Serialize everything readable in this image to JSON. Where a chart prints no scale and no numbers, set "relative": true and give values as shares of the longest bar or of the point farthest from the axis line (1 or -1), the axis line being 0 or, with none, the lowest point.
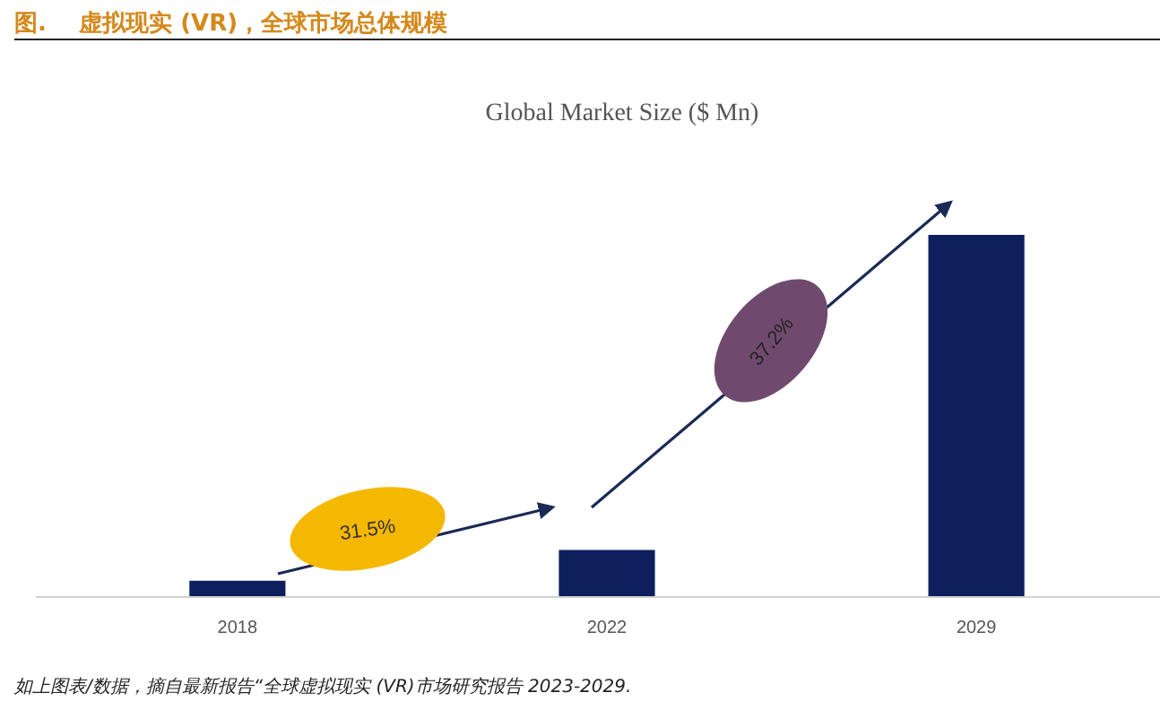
{
  "chart_data": {
    "type": "bar",
    "title": "图.    虚拟现实 (VR)，全球市场总体规模",
    "subtitle": "Global Market Size ($ Mn)",
    "categories": [
      "2018",
      "2022",
      "2029"
    ],
    "values": [
      0.045,
      0.13,
      1
    ],
    "color": "#0d1f5c",
    "relative": true,
    "annotations": [
      "31.5%",
      "37.2%",
      "如上图表/数据，摘自最新报告“全球虚拟现实 (VR)市场研究报告 2023-2029."
    ]
  }
}
